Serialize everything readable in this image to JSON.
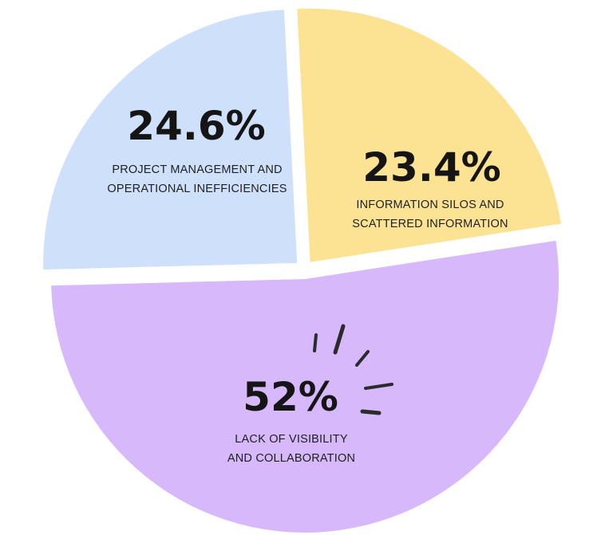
{
  "chart_data": {
    "type": "pie",
    "title": "",
    "slices": [
      {
        "value": 24.6,
        "value_label": "24.6%",
        "label_lines": [
          "PROJECT MANAGEMENT AND",
          "OPERATIONAL INEFFICIENCIES"
        ],
        "color": "#cfe0fb"
      },
      {
        "value": 23.4,
        "value_label": "23.4%",
        "label_lines": [
          "INFORMATION SILOS AND",
          "SCATTERED INFORMATION"
        ],
        "color": "#fce293"
      },
      {
        "value": 52,
        "value_label": "52%",
        "label_lines": [
          "LACK OF VISIBILITY",
          "AND COLLABORATION"
        ],
        "color": "#d6b8fb"
      }
    ],
    "exploded": true,
    "legend": "none"
  }
}
